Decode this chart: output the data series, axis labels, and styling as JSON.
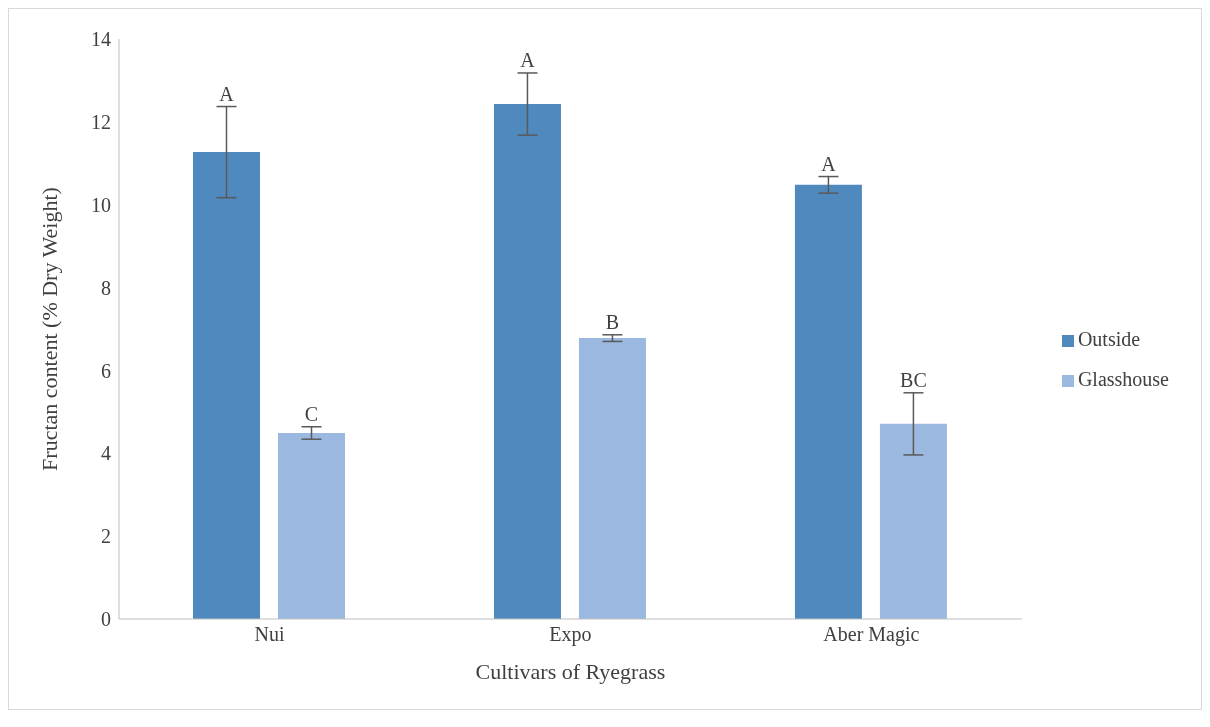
{
  "chart_data": {
    "type": "bar",
    "xlabel": "Cultivars of Ryegrass",
    "ylabel": "Fructan content (% Dry Weight)",
    "categories": [
      "Nui",
      "Expo",
      "Aber Magic"
    ],
    "series": [
      {
        "name": "Outside",
        "color": "#4f89bd",
        "values": [
          11.27,
          12.43,
          10.48
        ],
        "errors": [
          1.1,
          0.75,
          0.2
        ]
      },
      {
        "name": "Glasshouse",
        "color": "#9bb9e0",
        "values": [
          4.49,
          6.78,
          4.71
        ],
        "errors": [
          0.15,
          0.08,
          0.75
        ]
      }
    ],
    "ylim": [
      0,
      14
    ],
    "yticks": [
      0,
      2,
      4,
      6,
      8,
      10,
      12,
      14
    ],
    "grid": false,
    "legend": "right",
    "annotations": [
      "A",
      "C",
      "A",
      "B",
      "A",
      "BC"
    ]
  }
}
